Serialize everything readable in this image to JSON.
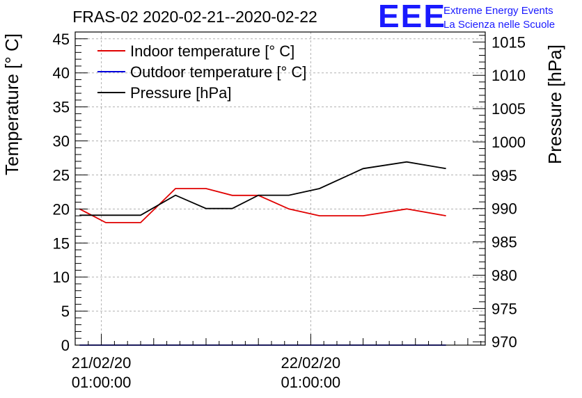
{
  "chart_data": {
    "type": "line",
    "title": "FRAS-02 2020-02-21--2020-02-22",
    "ylabel_left": "Temperature [° C]",
    "ylabel_right": "Pressure [hPa]",
    "ylim_left": [
      0,
      46
    ],
    "ylim_right": [
      969.5,
      1016.5
    ],
    "yticks_left": [
      0,
      5,
      10,
      15,
      20,
      25,
      30,
      35,
      40,
      45
    ],
    "yticks_right": [
      970,
      975,
      980,
      985,
      990,
      995,
      1000,
      1005,
      1010,
      1015
    ],
    "x_hours_range": [
      -3,
      44
    ],
    "x_major_ticks": [
      {
        "hour": 0,
        "label1": "21/02/20",
        "label2": "01:00:00"
      },
      {
        "hour": 24,
        "label1": "22/02/20",
        "label2": "01:00:00"
      }
    ],
    "series": [
      {
        "name": "Indoor temperature [° C]",
        "axis": "left",
        "color": "#e00000",
        "x": [
          -2.5,
          0.5,
          4.5,
          8.5,
          12,
          15,
          18,
          21.5,
          25,
          30,
          35,
          39.5
        ],
        "values": [
          20,
          18,
          18,
          23,
          23,
          22,
          22,
          20,
          19,
          19,
          20,
          19
        ]
      },
      {
        "name": "Outdoor temperature [° C]",
        "axis": "left",
        "color": "#0000dd",
        "x": [
          -2.5,
          39.5
        ],
        "values": [
          0,
          0
        ]
      },
      {
        "name": "Pressure [hPa]",
        "axis": "right",
        "color": "#000000",
        "x": [
          -2.5,
          1.5,
          4.5,
          8.5,
          12,
          15,
          18,
          21.5,
          25,
          30,
          35,
          39.5
        ],
        "values": [
          989,
          989,
          989,
          992,
          990,
          990,
          992,
          992,
          993,
          996,
          997,
          996
        ]
      }
    ],
    "legend": "top-left"
  },
  "logo": {
    "mark": "EEE",
    "line1": "Extreme Energy Events",
    "line2": "La Scienza nelle Scuole",
    "color": "#1a1aff"
  }
}
